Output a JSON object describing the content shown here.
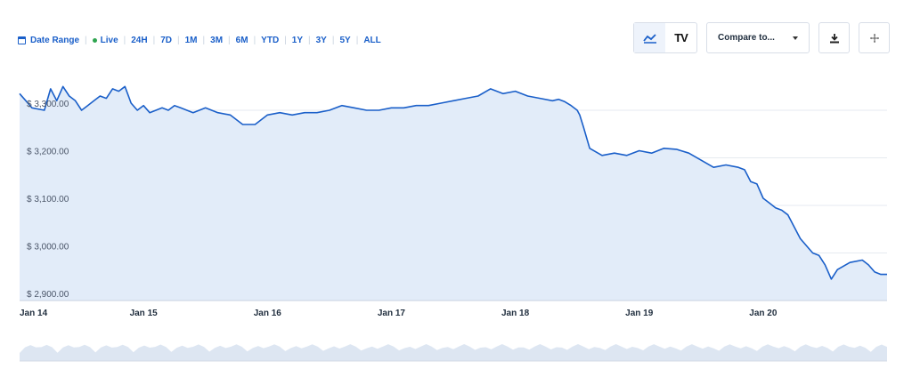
{
  "toolbar": {
    "date_range_label": "Date Range",
    "live_label": "Live",
    "timeframes": [
      "24H",
      "7D",
      "1M",
      "3M",
      "6M",
      "YTD",
      "1Y",
      "3Y",
      "5Y",
      "ALL"
    ]
  },
  "controls": {
    "compare_label": "Compare to...",
    "tradingview_logo": "TV"
  },
  "colors": {
    "line": "#1a5fc9",
    "area_fill": "#e2ecf9",
    "grid": "#e6eaf0",
    "volume": "#dde6f2"
  },
  "chart_data": {
    "type": "area",
    "ylim": [
      2900,
      3350
    ],
    "y_ticks": [
      3300,
      3200,
      3100,
      3000,
      2900
    ],
    "y_tick_labels": [
      "$ 3,300.00",
      "$ 3,200.00",
      "$ 3,100.00",
      "$ 3,000.00",
      "$ 2,900.00"
    ],
    "x_ticks": [
      0,
      1,
      2,
      3,
      4,
      5,
      6
    ],
    "x_tick_labels": [
      "Jan 14",
      "Jan 15",
      "Jan 16",
      "Jan 17",
      "Jan 18",
      "Jan 19",
      "Jan 20"
    ],
    "x_range": [
      0,
      7
    ],
    "series": [
      {
        "x": [
          0.0,
          0.05,
          0.1,
          0.2,
          0.25,
          0.3,
          0.35,
          0.4,
          0.45,
          0.5,
          0.55,
          0.6,
          0.65,
          0.7,
          0.75,
          0.8,
          0.85,
          0.9,
          0.95,
          1.0,
          1.05,
          1.1,
          1.15,
          1.2,
          1.25,
          1.3,
          1.35,
          1.4,
          1.45,
          1.5,
          1.6,
          1.7,
          1.8,
          1.9,
          2.0,
          2.1,
          2.2,
          2.3,
          2.4,
          2.5,
          2.6,
          2.7,
          2.8,
          2.9,
          3.0,
          3.1,
          3.2,
          3.3,
          3.4,
          3.5,
          3.6,
          3.7,
          3.8,
          3.9,
          4.0,
          4.1,
          4.2,
          4.3,
          4.35,
          4.4,
          4.45,
          4.5,
          4.52,
          4.55,
          4.6,
          4.7,
          4.8,
          4.9,
          5.0,
          5.1,
          5.2,
          5.3,
          5.4,
          5.5,
          5.6,
          5.7,
          5.8,
          5.85,
          5.9,
          5.95,
          6.0,
          6.05,
          6.1,
          6.15,
          6.2,
          6.3,
          6.4,
          6.45,
          6.5,
          6.55,
          6.6,
          6.7,
          6.8,
          6.85,
          6.9,
          6.95,
          7.0
        ],
        "y": [
          3335,
          3320,
          3305,
          3300,
          3345,
          3320,
          3350,
          3330,
          3320,
          3300,
          3310,
          3320,
          3330,
          3325,
          3345,
          3340,
          3350,
          3315,
          3300,
          3310,
          3295,
          3300,
          3305,
          3300,
          3310,
          3305,
          3300,
          3295,
          3300,
          3305,
          3295,
          3290,
          3270,
          3270,
          3290,
          3295,
          3290,
          3295,
          3295,
          3300,
          3310,
          3305,
          3300,
          3300,
          3305,
          3305,
          3310,
          3310,
          3315,
          3320,
          3325,
          3330,
          3345,
          3335,
          3340,
          3330,
          3325,
          3320,
          3323,
          3318,
          3310,
          3300,
          3290,
          3265,
          3220,
          3205,
          3210,
          3205,
          3215,
          3210,
          3220,
          3218,
          3210,
          3195,
          3180,
          3185,
          3180,
          3175,
          3150,
          3145,
          3115,
          3105,
          3095,
          3090,
          3080,
          3030,
          3000,
          2995,
          2975,
          2945,
          2965,
          2980,
          2985,
          2975,
          2960,
          2955,
          2955
        ]
      }
    ],
    "grid": true,
    "legend": "none"
  }
}
